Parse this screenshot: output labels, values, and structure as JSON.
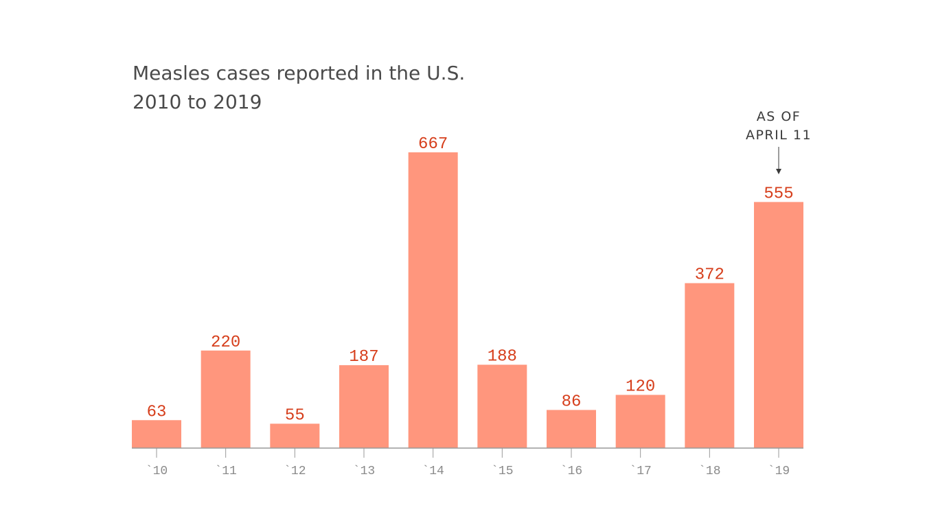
{
  "chart_data": {
    "type": "bar",
    "title_line1": "Measles cases reported in the U.S.",
    "title_line2": "2010 to 2019",
    "categories": [
      "`10",
      "`11",
      "`12",
      "`13",
      "`14",
      "`15",
      "`16",
      "`17",
      "`18",
      "`19"
    ],
    "values": [
      63,
      220,
      55,
      187,
      667,
      188,
      86,
      120,
      372,
      555
    ],
    "xlabel": "",
    "ylabel": "",
    "ylim": [
      0,
      667
    ],
    "grid": false,
    "annotation": {
      "category": "`19",
      "lines": [
        "AS OF",
        "APRIL 11"
      ]
    },
    "colors": {
      "bar": "#ff967d",
      "value_label": "#d63e1b",
      "axis": "#999999",
      "tick_label": "#8a8a8a",
      "title": "#4a4a4a"
    }
  }
}
